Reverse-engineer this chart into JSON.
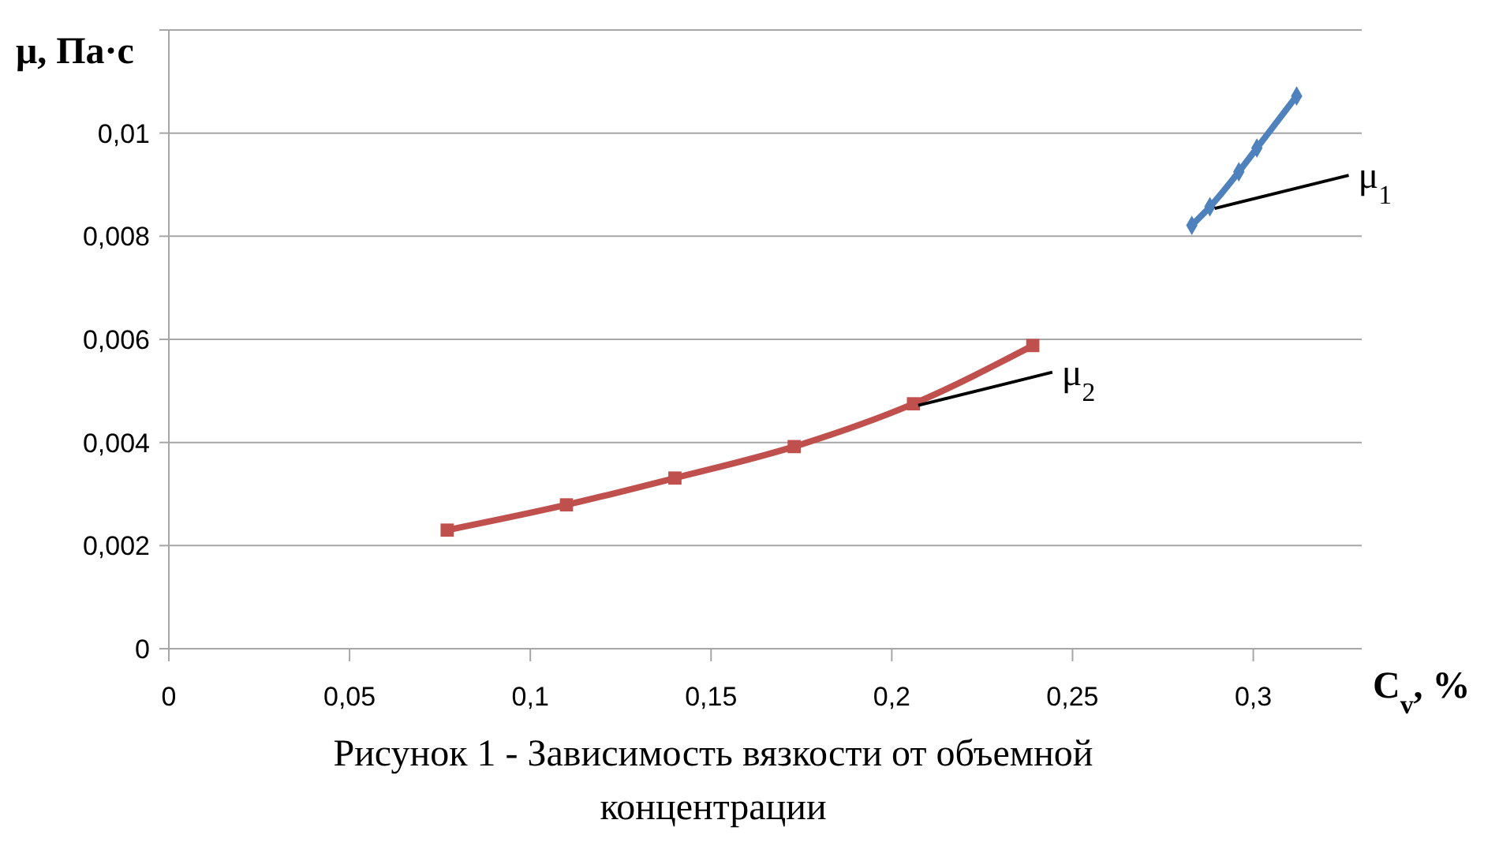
{
  "chart_data": {
    "type": "line",
    "ylabel": "μ, Па·с",
    "xlabel": "C$_{v}$, %",
    "xlim": [
      0,
      0.33
    ],
    "xticks": [
      {
        "value": 0,
        "label": "0"
      },
      {
        "value": 0.05,
        "label": "0,05"
      },
      {
        "value": 0.1,
        "label": "0,1"
      },
      {
        "value": 0.15,
        "label": "0,15"
      },
      {
        "value": 0.2,
        "label": "0,2"
      },
      {
        "value": 0.25,
        "label": "0,25"
      },
      {
        "value": 0.3,
        "label": "0,3"
      }
    ],
    "ylim": [
      0,
      0.012
    ],
    "yticks": [
      {
        "value": 0,
        "label": "0"
      },
      {
        "value": 0.002,
        "label": "0,002"
      },
      {
        "value": 0.004,
        "label": "0,004"
      },
      {
        "value": 0.006,
        "label": "0,006"
      },
      {
        "value": 0.008,
        "label": "0,008"
      },
      {
        "value": 0.01,
        "label": "0,01"
      },
      {
        "value": 0.012,
        "label": null
      }
    ],
    "grid": "y",
    "series": [
      {
        "color": "#4f81bd",
        "marker": "diamond",
        "x": [
          0.283,
          0.288,
          0.296,
          0.301,
          0.312
        ],
        "values": [
          0.00821,
          0.00857,
          0.00925,
          0.00971,
          0.01072
        ]
      },
      {
        "color": "#c0504d",
        "marker": "square",
        "x": [
          0.077,
          0.11,
          0.14,
          0.173,
          0.206,
          0.239
        ],
        "values": [
          0.0023,
          0.00279,
          0.00331,
          0.00392,
          0.00475,
          0.00588
        ]
      }
    ],
    "annotations": [
      {
        "text": "μ$_{1}$",
        "x": 0.288,
        "y": 0.00857
      },
      {
        "text": "μ$_{2}$",
        "x": 0.206,
        "y": 0.00475
      },
      "Рисунок 1 -  Зависимость вязкости от объемной концентрации"
    ]
  }
}
